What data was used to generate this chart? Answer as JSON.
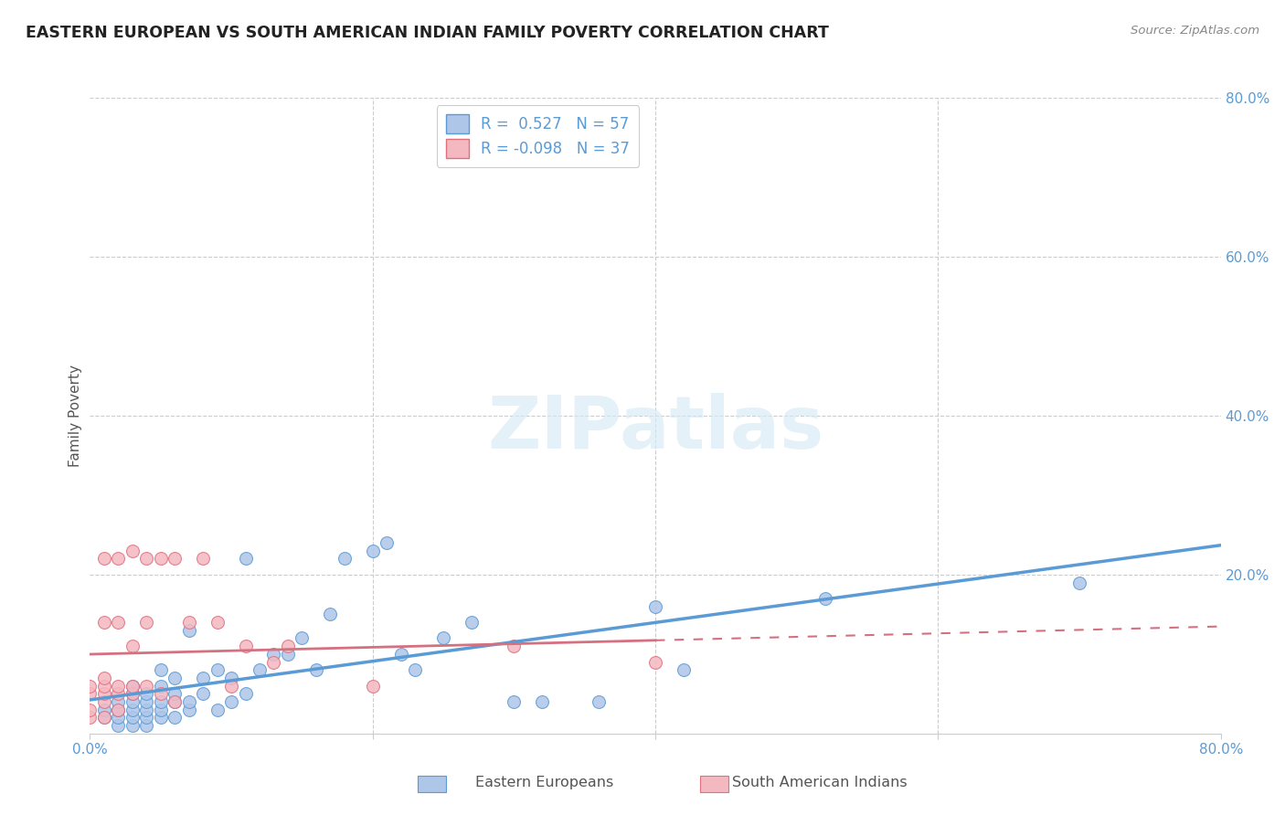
{
  "title": "EASTERN EUROPEAN VS SOUTH AMERICAN INDIAN FAMILY POVERTY CORRELATION CHART",
  "source": "Source: ZipAtlas.com",
  "ylabel": "Family Poverty",
  "xlim": [
    0,
    0.8
  ],
  "ylim": [
    0,
    0.8
  ],
  "xtick_labels": [
    "0.0%",
    "",
    "",
    "",
    "80.0%"
  ],
  "xtick_vals": [
    0.0,
    0.2,
    0.4,
    0.6,
    0.8
  ],
  "ytick_labels": [
    "20.0%",
    "40.0%",
    "60.0%",
    "80.0%"
  ],
  "ytick_vals": [
    0.2,
    0.4,
    0.6,
    0.8
  ],
  "R_blue": 0.527,
  "N_blue": 57,
  "R_pink": -0.098,
  "N_pink": 37,
  "blue_color": "#aec6e8",
  "blue_edge_color": "#5b9bd5",
  "pink_color": "#f4b8c1",
  "pink_edge_color": "#e07080",
  "blue_line_color": "#5b9bd5",
  "pink_line_color": "#d47080",
  "blue_scatter_x": [
    0.01,
    0.01,
    0.02,
    0.02,
    0.02,
    0.02,
    0.03,
    0.03,
    0.03,
    0.03,
    0.03,
    0.03,
    0.04,
    0.04,
    0.04,
    0.04,
    0.04,
    0.05,
    0.05,
    0.05,
    0.05,
    0.05,
    0.06,
    0.06,
    0.06,
    0.06,
    0.07,
    0.07,
    0.07,
    0.08,
    0.08,
    0.09,
    0.09,
    0.1,
    0.1,
    0.11,
    0.11,
    0.12,
    0.13,
    0.14,
    0.15,
    0.16,
    0.17,
    0.18,
    0.2,
    0.21,
    0.22,
    0.23,
    0.25,
    0.27,
    0.3,
    0.32,
    0.36,
    0.4,
    0.42,
    0.52,
    0.7
  ],
  "blue_scatter_y": [
    0.02,
    0.03,
    0.01,
    0.02,
    0.03,
    0.04,
    0.01,
    0.02,
    0.03,
    0.04,
    0.05,
    0.06,
    0.01,
    0.02,
    0.03,
    0.04,
    0.05,
    0.02,
    0.03,
    0.04,
    0.06,
    0.08,
    0.02,
    0.04,
    0.05,
    0.07,
    0.03,
    0.04,
    0.13,
    0.05,
    0.07,
    0.03,
    0.08,
    0.04,
    0.07,
    0.05,
    0.22,
    0.08,
    0.1,
    0.1,
    0.12,
    0.08,
    0.15,
    0.22,
    0.23,
    0.24,
    0.1,
    0.08,
    0.12,
    0.14,
    0.04,
    0.04,
    0.04,
    0.16,
    0.08,
    0.17,
    0.19
  ],
  "pink_scatter_x": [
    0.0,
    0.0,
    0.0,
    0.0,
    0.01,
    0.01,
    0.01,
    0.01,
    0.01,
    0.01,
    0.01,
    0.02,
    0.02,
    0.02,
    0.02,
    0.02,
    0.03,
    0.03,
    0.03,
    0.03,
    0.04,
    0.04,
    0.04,
    0.05,
    0.05,
    0.06,
    0.06,
    0.07,
    0.08,
    0.09,
    0.1,
    0.11,
    0.13,
    0.14,
    0.2,
    0.3,
    0.4
  ],
  "pink_scatter_y": [
    0.02,
    0.03,
    0.05,
    0.06,
    0.02,
    0.04,
    0.05,
    0.06,
    0.07,
    0.14,
    0.22,
    0.03,
    0.05,
    0.06,
    0.14,
    0.22,
    0.05,
    0.06,
    0.11,
    0.23,
    0.06,
    0.14,
    0.22,
    0.05,
    0.22,
    0.04,
    0.22,
    0.14,
    0.22,
    0.14,
    0.06,
    0.11,
    0.09,
    0.11,
    0.06,
    0.11,
    0.09
  ],
  "watermark_text": "ZIPatlas",
  "legend_blue_label": "Eastern Europeans",
  "legend_pink_label": "South American Indians",
  "title_color": "#222222",
  "axis_label_color": "#555555",
  "tick_color": "#5b9bd5",
  "grid_color": "#cccccc",
  "background_color": "#ffffff"
}
